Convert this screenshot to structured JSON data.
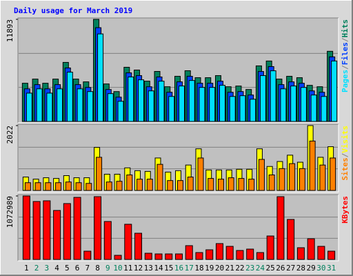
{
  "title": "Daily usage for March 2019",
  "legend_separator": "/",
  "separator_color": "#808080",
  "chart_data": [
    {
      "type": "bar",
      "series": [
        {
          "name": "Hits",
          "color": "#00805c",
          "values": [
            4450,
            4935,
            4450,
            4935,
            6877,
            4935,
            4612,
            11893,
            4369,
            3479,
            6311,
            5987,
            4693,
            5825,
            4045,
            5259,
            5906,
            5097,
            5097,
            5340,
            4045,
            4126,
            3722,
            6472,
            7039,
            4935,
            5259,
            5097,
            4207,
            4045,
            8171
          ]
        },
        {
          "name": "Files",
          "color": "#0040ff",
          "values": [
            3800,
            4290,
            3800,
            4290,
            6230,
            4290,
            3960,
            10922,
            3720,
            2830,
            5660,
            5340,
            4040,
            5180,
            3400,
            4610,
            5260,
            4450,
            4450,
            4690,
            3400,
            3480,
            3080,
            5820,
            6390,
            4290,
            4610,
            4450,
            3560,
            3400,
            7520
          ]
        },
        {
          "name": "Pages",
          "color": "#00e0ff",
          "values": [
            3300,
            3800,
            3300,
            3800,
            5740,
            3800,
            3480,
            10194,
            3240,
            2350,
            5180,
            4850,
            3560,
            4690,
            2910,
            4130,
            4770,
            3960,
            3960,
            4210,
            2910,
            3000,
            2590,
            5340,
            5900,
            3800,
            4130,
            3960,
            3080,
            2910,
            7040
          ]
        }
      ],
      "ylim": [
        0,
        11893
      ],
      "yticks": [
        11893
      ]
    },
    {
      "type": "bar",
      "series": [
        {
          "name": "Visits",
          "color": "#ffff00",
          "values": [
            418,
            352,
            396,
            374,
            462,
            396,
            396,
            1342,
            506,
            506,
            704,
            616,
            594,
            1012,
            572,
            616,
            792,
            1298,
            638,
            638,
            638,
            660,
            660,
            1298,
            748,
            902,
            1100,
            880,
            2022,
            1034,
            1364
          ]
        },
        {
          "name": "Sites",
          "color": "#ff8000",
          "values": [
            242,
            242,
            242,
            242,
            264,
            242,
            220,
            1034,
            264,
            286,
            484,
            352,
            352,
            814,
            308,
            308,
            418,
            1012,
            374,
            352,
            396,
            374,
            352,
            968,
            484,
            682,
            836,
            682,
            1540,
            792,
            1012
          ]
        }
      ],
      "ylim": [
        0,
        2022
      ],
      "yticks": [
        2022
      ]
    },
    {
      "type": "bar",
      "categories": [
        "1",
        "2",
        "3",
        "4",
        "5",
        "6",
        "7",
        "8",
        "9",
        "10",
        "11",
        "12",
        "13",
        "14",
        "15",
        "16",
        "17",
        "18",
        "19",
        "20",
        "21",
        "22",
        "23",
        "24",
        "25",
        "26",
        "27",
        "28",
        "29",
        "30",
        "31"
      ],
      "label_colors": [
        "#000000",
        "#00805c",
        "#00805c",
        "#000000",
        "#000000",
        "#000000",
        "#000000",
        "#000000",
        "#00805c",
        "#00805c",
        "#000000",
        "#000000",
        "#000000",
        "#000000",
        "#000000",
        "#00805c",
        "#00805c",
        "#000000",
        "#000000",
        "#000000",
        "#000000",
        "#000000",
        "#00805c",
        "#00805c",
        "#000000",
        "#000000",
        "#000000",
        "#000000",
        "#000000",
        "#00805c",
        "#00805c"
      ],
      "series": [
        {
          "name": "KBytes",
          "color": "#ff0000",
          "values": [
            1072989,
            979692,
            991355,
            828073,
            944703,
            1049667,
            139956,
            1061326,
            641465,
            69978,
            594813,
            443194,
            104967,
            93304,
            93304,
            93304,
            233260,
            116630,
            163282,
            268249,
            221597,
            151619,
            174945,
            116630,
            396542,
            1061326,
            676454,
            198271,
            349890,
            221597,
            139956
          ]
        }
      ],
      "ylim": [
        0,
        1072989
      ],
      "yticks": [
        1072989
      ]
    }
  ]
}
